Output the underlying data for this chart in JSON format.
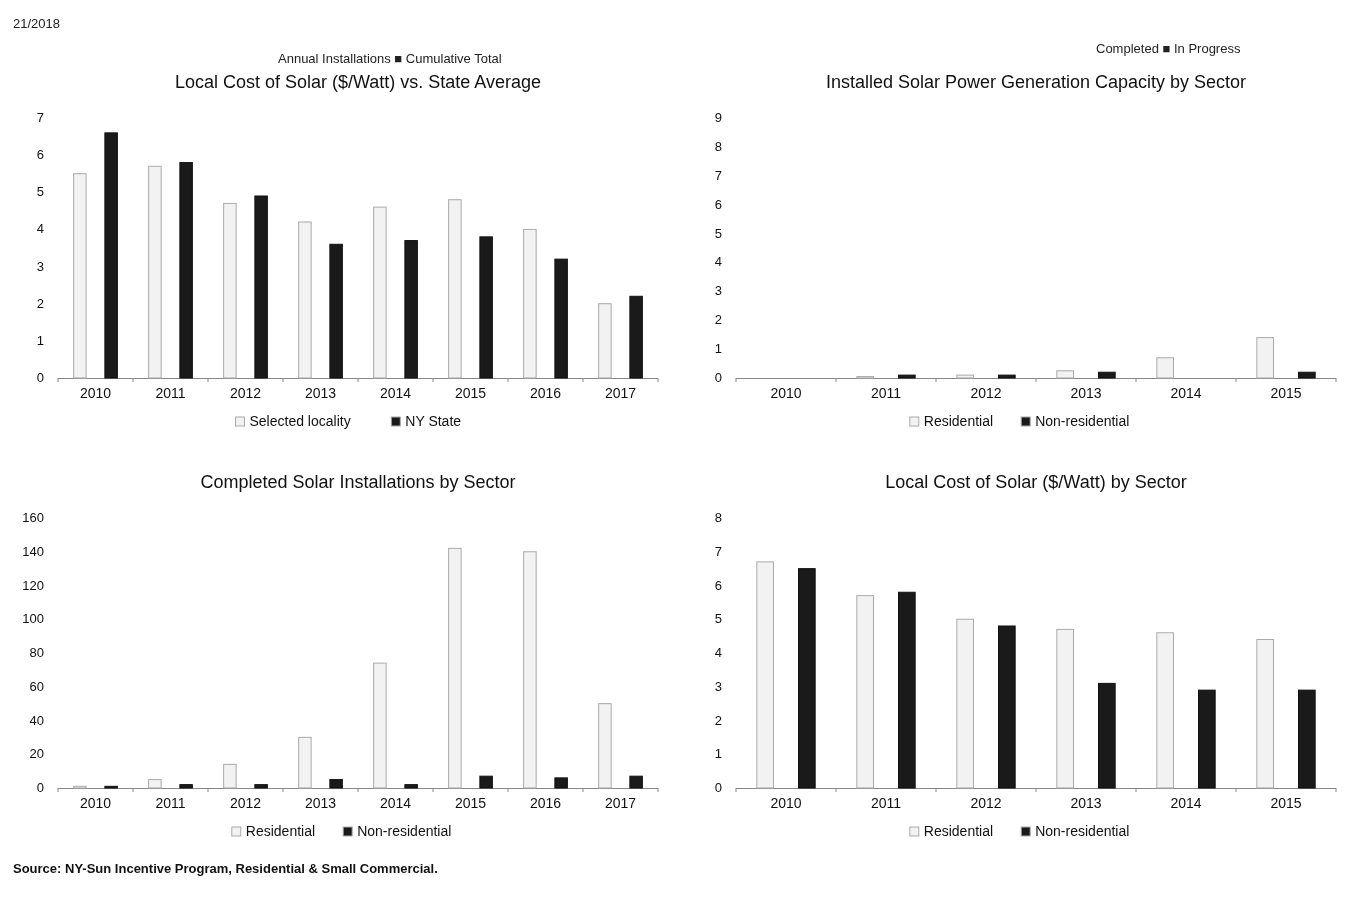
{
  "chart_data": [
    {
      "type": "bar",
      "title": "Local Cost of Solar ($/Watt) vs. State Average",
      "annotations": [
        "21/2018",
        "Annual Installations ■ Cumulative Total"
      ],
      "categories": [
        "2010",
        "2011",
        "2012",
        "2013",
        "2014",
        "2015",
        "2016",
        "2017"
      ],
      "series": [
        {
          "name": "Selected locality",
          "color": "#f2f2f2",
          "values": [
            5.5,
            5.7,
            4.7,
            4.2,
            4.6,
            4.8,
            4.0,
            2.0
          ]
        },
        {
          "name": "NY State",
          "color": "#1a1a1a",
          "values": [
            6.6,
            5.8,
            4.9,
            3.6,
            3.7,
            3.8,
            3.2,
            2.2
          ]
        }
      ],
      "ylim": [
        0,
        7
      ],
      "yticks": [
        0,
        1,
        2,
        3,
        4,
        5,
        6,
        7
      ],
      "grid": false,
      "legend": "bottom"
    },
    {
      "type": "bar",
      "title": "Installed Solar Power Generation Capacity by Sector",
      "annotations": [
        "Completed ■ In Progress"
      ],
      "categories": [
        "2010",
        "2011",
        "2012",
        "2013",
        "2014",
        "2015"
      ],
      "series": [
        {
          "name": "Residential",
          "color": "#f2f2f2",
          "values": [
            0,
            0.05,
            0.1,
            0.25,
            0.7,
            1.4
          ]
        },
        {
          "name": "Non-residential",
          "color": "#1a1a1a",
          "values": [
            0,
            0.1,
            0.1,
            0.2,
            0,
            0.2
          ]
        }
      ],
      "ylim": [
        0,
        9
      ],
      "yticks": [
        0,
        1,
        2,
        3,
        4,
        5,
        6,
        7,
        8,
        9
      ],
      "grid": false,
      "legend": "bottom"
    },
    {
      "type": "bar",
      "title": "Completed Solar Installations by Sector",
      "annotations": [
        "Source: NY-Sun Incentive Program, Residential & Small Commercial."
      ],
      "categories": [
        "2010",
        "2011",
        "2012",
        "2013",
        "2014",
        "2015",
        "2016",
        "2017"
      ],
      "series": [
        {
          "name": "Residential",
          "color": "#f2f2f2",
          "values": [
            1,
            5,
            14,
            30,
            74,
            142,
            140,
            50
          ]
        },
        {
          "name": "Non-residential",
          "color": "#1a1a1a",
          "values": [
            1,
            2,
            2,
            5,
            2,
            7,
            6,
            7
          ]
        }
      ],
      "ylim": [
        0,
        160
      ],
      "yticks": [
        0,
        20,
        40,
        60,
        80,
        100,
        120,
        140,
        160
      ],
      "grid": false,
      "legend": "bottom"
    },
    {
      "type": "bar",
      "title": "Local Cost of Solar ($/Watt) by Sector",
      "categories": [
        "2010",
        "2011",
        "2012",
        "2013",
        "2014",
        "2015"
      ],
      "series": [
        {
          "name": "Residential",
          "color": "#f2f2f2",
          "values": [
            6.7,
            5.7,
            5.0,
            4.7,
            4.6,
            4.4
          ]
        },
        {
          "name": "Non-residential",
          "color": "#1a1a1a",
          "values": [
            6.5,
            5.8,
            4.8,
            3.1,
            2.9,
            2.9
          ]
        }
      ],
      "ylim": [
        0,
        8
      ],
      "yticks": [
        0,
        1,
        2,
        3,
        4,
        5,
        6,
        7,
        8
      ],
      "grid": false,
      "legend": "bottom"
    }
  ]
}
